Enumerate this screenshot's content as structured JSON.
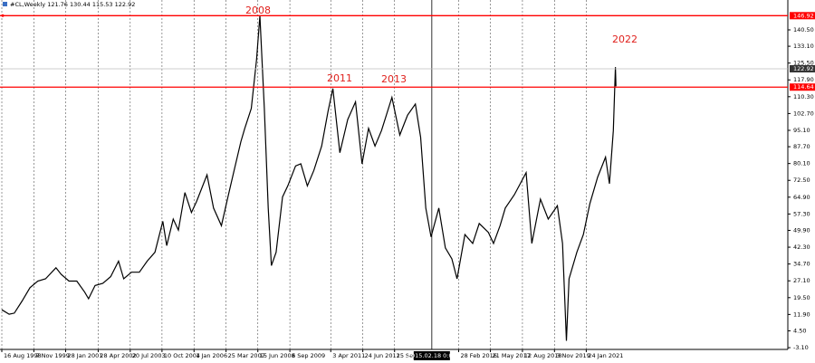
{
  "chart_data": {
    "type": "line",
    "title": "#CL,Weekly  121.76 130.44 115.53 122.92",
    "x": [
      1998.62,
      1998.9,
      1999.1,
      1999.4,
      1999.7,
      2000.0,
      2000.3,
      2000.7,
      2000.9,
      2001.2,
      2001.5,
      2001.8,
      2001.95,
      2002.2,
      2002.5,
      2002.8,
      2003.1,
      2003.3,
      2003.6,
      2003.9,
      2004.2,
      2004.5,
      2004.8,
      2004.95,
      2005.2,
      2005.4,
      2005.65,
      2005.9,
      2006.1,
      2006.5,
      2006.75,
      2007.05,
      2007.3,
      2007.5,
      2007.8,
      2007.95,
      2008.2,
      2008.4,
      2008.53,
      2008.7,
      2008.85,
      2008.97,
      2009.15,
      2009.4,
      2009.6,
      2009.9,
      2010.1,
      2010.35,
      2010.6,
      2010.9,
      2011.15,
      2011.33,
      2011.6,
      2011.9,
      2012.2,
      2012.45,
      2012.7,
      2012.95,
      2013.2,
      2013.6,
      2013.9,
      2014.2,
      2014.5,
      2014.7,
      2014.9,
      2015.1,
      2015.4,
      2015.65,
      2015.9,
      2016.1,
      2016.4,
      2016.7,
      2016.95,
      2017.3,
      2017.5,
      2017.75,
      2017.95,
      2018.3,
      2018.75,
      2018.97,
      2019.3,
      2019.6,
      2019.95,
      2020.15,
      2020.3,
      2020.4,
      2020.7,
      2020.95,
      2021.2,
      2021.5,
      2021.8,
      2021.95,
      2022.1,
      2022.18,
      2022.2
    ],
    "values": [
      14,
      12,
      12.5,
      18,
      24,
      27,
      28,
      33,
      30,
      27,
      27,
      22,
      19,
      25,
      26,
      29,
      36,
      28,
      31,
      31,
      36,
      40,
      54,
      43,
      55,
      50,
      67,
      58,
      63,
      75,
      60,
      52,
      65,
      75,
      90,
      96,
      105,
      127,
      146.9,
      105,
      60,
      34,
      40,
      65,
      70,
      79,
      80,
      70,
      77,
      88,
      104,
      114,
      85,
      100,
      108,
      80,
      96,
      88,
      95,
      110,
      93,
      102,
      107,
      92,
      60,
      47,
      60,
      42,
      37,
      28,
      48,
      44,
      53,
      49,
      44,
      52,
      60,
      66,
      76,
      44,
      64,
      55,
      61,
      44,
      0,
      28,
      40,
      48,
      62,
      74,
      83,
      71,
      95,
      123.7,
      115
    ],
    "color": "#000000",
    "xlim": [
      1998.55,
      2028.8
    ],
    "ylim": [
      -3.9,
      154.0
    ],
    "xticks": [
      {
        "value": 1998.62,
        "label": "16 Aug 1998"
      },
      {
        "value": 1999.85,
        "label": "7 Nov 1999"
      },
      {
        "value": 2001.07,
        "label": "28 Jan 2001"
      },
      {
        "value": 2002.32,
        "label": "28 Apr 2002"
      },
      {
        "value": 2003.55,
        "label": "20 Jul 2003"
      },
      {
        "value": 2004.77,
        "label": "10 Oct 2004"
      },
      {
        "value": 2006.0,
        "label": "1 Jan 2006"
      },
      {
        "value": 2007.23,
        "label": "25 Mar 2007"
      },
      {
        "value": 2008.45,
        "label": "15 Jun 2008"
      },
      {
        "value": 2009.68,
        "label": "6 Sep 2009"
      },
      {
        "value": 2011.25,
        "label": "3 Apr 2011"
      },
      {
        "value": 2012.48,
        "label": "24 Jun 2012"
      },
      {
        "value": 2013.7,
        "label": "15 Sep 2013"
      },
      {
        "value": 2016.16,
        "label": "28 Feb 2016"
      },
      {
        "value": 2017.38,
        "label": "21 May 2017"
      },
      {
        "value": 2018.61,
        "label": "12 Aug 2018"
      },
      {
        "value": 2019.84,
        "label": "3 Nov 2019"
      },
      {
        "value": 2021.06,
        "label": "24 Jan 2021"
      }
    ],
    "yticks": [
      {
        "value": 140.5,
        "label": "140.50"
      },
      {
        "value": 133.1,
        "label": "133.10"
      },
      {
        "value": 125.5,
        "label": "125.50"
      },
      {
        "value": 117.9,
        "label": "117.90"
      },
      {
        "value": 110.3,
        "label": "110.30"
      },
      {
        "value": 102.7,
        "label": "102.70"
      },
      {
        "value": 95.1,
        "label": "95.10"
      },
      {
        "value": 87.7,
        "label": "87.70"
      },
      {
        "value": 80.1,
        "label": "80.10"
      },
      {
        "value": 72.5,
        "label": "72.50"
      },
      {
        "value": 64.9,
        "label": "64.90"
      },
      {
        "value": 57.3,
        "label": "57.30"
      },
      {
        "value": 49.9,
        "label": "49.90"
      },
      {
        "value": 42.3,
        "label": "42.30"
      },
      {
        "value": 34.7,
        "label": "34.70"
      },
      {
        "value": 27.1,
        "label": "27.10"
      },
      {
        "value": 19.5,
        "label": "19.50"
      },
      {
        "value": 11.9,
        "label": "11.90"
      },
      {
        "value": 4.5,
        "label": "4.50"
      },
      {
        "value": -3.1,
        "label": "-3.10"
      }
    ],
    "grid": true,
    "levels": [
      146.92,
      114.64
    ],
    "level_color": "#ff0000",
    "last_price": 122.92,
    "crosshair": {
      "value": 2015.13,
      "label": "2015.02.18 0:00"
    },
    "annotations": [
      "2008",
      "2011",
      "2013",
      "2022"
    ],
    "annotation_color": "#e0201c"
  }
}
